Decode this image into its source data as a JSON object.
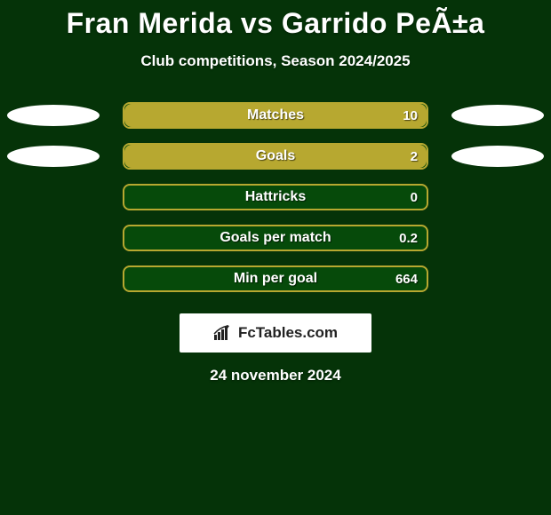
{
  "background_color": "#053308",
  "title": {
    "text": "Fran Merida vs Garrido PeÃ±a",
    "color": "#ffffff",
    "fontsize": 32
  },
  "subtitle": {
    "text": "Club competitions, Season 2024/2025",
    "color": "#ffffff",
    "fontsize": 17
  },
  "ellipse_color": "#ffffff",
  "bar_bg_color": "#064a0a",
  "bar_border_color": "#b7a830",
  "bar_fill_color": "#b7a830",
  "label_color": "#ffffff",
  "value_color": "#ffffff",
  "stats": [
    {
      "label": "Matches",
      "value_text": "10",
      "fill_pct": 100,
      "show_left_ellipse": true,
      "show_right_ellipse": true
    },
    {
      "label": "Goals",
      "value_text": "2",
      "fill_pct": 100,
      "show_left_ellipse": true,
      "show_right_ellipse": true
    },
    {
      "label": "Hattricks",
      "value_text": "0",
      "fill_pct": 0,
      "show_left_ellipse": false,
      "show_right_ellipse": false
    },
    {
      "label": "Goals per match",
      "value_text": "0.2",
      "fill_pct": 0,
      "show_left_ellipse": false,
      "show_right_ellipse": false
    },
    {
      "label": "Min per goal",
      "value_text": "664",
      "fill_pct": 0,
      "show_left_ellipse": false,
      "show_right_ellipse": false
    }
  ],
  "branding": {
    "text": "FcTables.com",
    "box_bg": "#ffffff",
    "text_color": "#222222",
    "icon_color": "#222222"
  },
  "date": {
    "text": "24 november 2024",
    "color": "#ffffff"
  }
}
